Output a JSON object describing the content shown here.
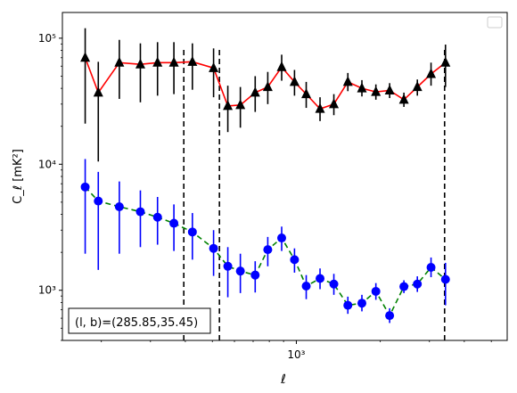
{
  "chart_data": {
    "type": "scatter",
    "xlabel": "ℓ",
    "ylabel": "C_ℓ [mK²]",
    "xscale": "log",
    "yscale": "log",
    "xlim": [
      145,
      5700
    ],
    "ylim": [
      400,
      160000
    ],
    "x_ticks": [
      {
        "value": 1000,
        "label": "10³"
      }
    ],
    "y_ticks": [
      {
        "value": 1000,
        "label": "10³"
      },
      {
        "value": 10000,
        "label": "10⁴"
      },
      {
        "value": 100000,
        "label": "10⁵"
      }
    ],
    "annotation": "(l, b)=(285.85,35.45)",
    "legend": "top-right (empty)",
    "vertical_lines": [
      395,
      530,
      3400
    ],
    "series": [
      {
        "color": "#ff0000",
        "marker": "triangle",
        "marker_color": "#000000",
        "line_style": "solid",
        "points": [
          {
            "x": 175,
            "y": 70000,
            "lo": 21000,
            "hi": 120000
          },
          {
            "x": 195,
            "y": 37000,
            "lo": 10500,
            "hi": 65000
          },
          {
            "x": 232,
            "y": 64000,
            "lo": 33000,
            "hi": 97000
          },
          {
            "x": 276,
            "y": 62000,
            "lo": 31000,
            "hi": 91000
          },
          {
            "x": 318,
            "y": 64000,
            "lo": 35000,
            "hi": 93000
          },
          {
            "x": 364,
            "y": 64000,
            "lo": 36000,
            "hi": 93000
          },
          {
            "x": 424,
            "y": 65000,
            "lo": 39000,
            "hi": 91000
          },
          {
            "x": 505,
            "y": 58000,
            "lo": 34000,
            "hi": 83000
          },
          {
            "x": 568,
            "y": 29000,
            "lo": 18000,
            "hi": 42000
          },
          {
            "x": 630,
            "y": 29500,
            "lo": 19500,
            "hi": 41000
          },
          {
            "x": 712,
            "y": 37000,
            "lo": 26000,
            "hi": 50000
          },
          {
            "x": 790,
            "y": 41000,
            "lo": 30000,
            "hi": 54000
          },
          {
            "x": 886,
            "y": 59000,
            "lo": 46000,
            "hi": 74000
          },
          {
            "x": 985,
            "y": 45000,
            "lo": 35000,
            "hi": 56000
          },
          {
            "x": 1085,
            "y": 36000,
            "lo": 28000,
            "hi": 45000
          },
          {
            "x": 1216,
            "y": 27500,
            "lo": 22000,
            "hi": 34000
          },
          {
            "x": 1363,
            "y": 30000,
            "lo": 24500,
            "hi": 36000
          },
          {
            "x": 1530,
            "y": 45000,
            "lo": 38000,
            "hi": 53000
          },
          {
            "x": 1718,
            "y": 40000,
            "lo": 34500,
            "hi": 46500
          },
          {
            "x": 1928,
            "y": 37500,
            "lo": 32500,
            "hi": 43000
          },
          {
            "x": 2160,
            "y": 38500,
            "lo": 33500,
            "hi": 44000
          },
          {
            "x": 2430,
            "y": 32500,
            "lo": 28500,
            "hi": 37000
          },
          {
            "x": 2715,
            "y": 41000,
            "lo": 35000,
            "hi": 47000
          },
          {
            "x": 3040,
            "y": 52000,
            "lo": 42000,
            "hi": 64000
          },
          {
            "x": 3425,
            "y": 64000,
            "lo": 41000,
            "hi": 89000
          }
        ]
      },
      {
        "color": "#008000",
        "marker": "circle",
        "marker_color": "#0000ff",
        "errorbar_color": "#0000ff",
        "line_style": "dashed",
        "points": [
          {
            "x": 175,
            "y": 6600,
            "lo": 1950,
            "hi": 11000
          },
          {
            "x": 195,
            "y": 5100,
            "lo": 1450,
            "hi": 8700
          },
          {
            "x": 232,
            "y": 4600,
            "lo": 1950,
            "hi": 7300
          },
          {
            "x": 276,
            "y": 4200,
            "lo": 2200,
            "hi": 6200
          },
          {
            "x": 318,
            "y": 3800,
            "lo": 2300,
            "hi": 5500
          },
          {
            "x": 364,
            "y": 3400,
            "lo": 2050,
            "hi": 4800
          },
          {
            "x": 424,
            "y": 2900,
            "lo": 1750,
            "hi": 4100
          },
          {
            "x": 505,
            "y": 2150,
            "lo": 1300,
            "hi": 3000
          },
          {
            "x": 568,
            "y": 1550,
            "lo": 880,
            "hi": 2200
          },
          {
            "x": 630,
            "y": 1420,
            "lo": 950,
            "hi": 1950
          },
          {
            "x": 712,
            "y": 1320,
            "lo": 960,
            "hi": 1700
          },
          {
            "x": 790,
            "y": 2100,
            "lo": 1550,
            "hi": 2650
          },
          {
            "x": 886,
            "y": 2600,
            "lo": 2050,
            "hi": 3200
          },
          {
            "x": 985,
            "y": 1750,
            "lo": 1380,
            "hi": 2150
          },
          {
            "x": 1085,
            "y": 1080,
            "lo": 850,
            "hi": 1320
          },
          {
            "x": 1216,
            "y": 1240,
            "lo": 1020,
            "hi": 1490
          },
          {
            "x": 1363,
            "y": 1120,
            "lo": 920,
            "hi": 1350
          },
          {
            "x": 1530,
            "y": 760,
            "lo": 650,
            "hi": 890
          },
          {
            "x": 1718,
            "y": 790,
            "lo": 680,
            "hi": 920
          },
          {
            "x": 1928,
            "y": 980,
            "lo": 840,
            "hi": 1140
          },
          {
            "x": 2160,
            "y": 630,
            "lo": 550,
            "hi": 720
          },
          {
            "x": 2430,
            "y": 1070,
            "lo": 950,
            "hi": 1200
          },
          {
            "x": 2715,
            "y": 1120,
            "lo": 970,
            "hi": 1290
          },
          {
            "x": 3040,
            "y": 1520,
            "lo": 1270,
            "hi": 1820
          },
          {
            "x": 3425,
            "y": 1220,
            "lo": 760,
            "hi": 1650
          }
        ]
      }
    ]
  }
}
